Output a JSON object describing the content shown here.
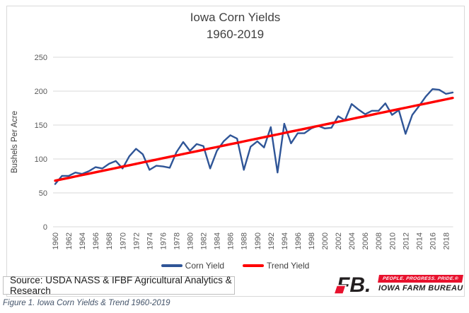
{
  "colors": {
    "accent_blue": "#2F5597",
    "accent_red": "#FF0000",
    "grid": "#D9D9D9",
    "axis_text": "#595959",
    "title_text": "#404040",
    "caption_text": "#44546A",
    "logo_red": "#E8112D",
    "logo_black": "#231F20"
  },
  "chart_data": {
    "type": "line",
    "title": "Iowa Corn Yields 1960-2019",
    "title_lines": [
      "Iowa Corn Yields",
      "1960-2019"
    ],
    "xlabel": "",
    "ylabel": "Bushels Per Acre",
    "ylim": [
      0,
      250
    ],
    "y_ticks": [
      0,
      50,
      100,
      150,
      200,
      250
    ],
    "x_tick_step": 2,
    "grid": "horizontal",
    "legend_position": "bottom",
    "x": [
      1960,
      1961,
      1962,
      1963,
      1964,
      1965,
      1966,
      1967,
      1968,
      1969,
      1970,
      1971,
      1972,
      1973,
      1974,
      1975,
      1976,
      1977,
      1978,
      1979,
      1980,
      1981,
      1982,
      1983,
      1984,
      1985,
      1986,
      1987,
      1988,
      1989,
      1990,
      1991,
      1992,
      1993,
      1994,
      1995,
      1996,
      1997,
      1998,
      1999,
      2000,
      2001,
      2002,
      2003,
      2004,
      2005,
      2006,
      2007,
      2008,
      2009,
      2010,
      2011,
      2012,
      2013,
      2014,
      2015,
      2016,
      2017,
      2018,
      2019
    ],
    "series": [
      {
        "name": "Corn Yield",
        "color": "#2F5597",
        "values": [
          63,
          75,
          75,
          80,
          78,
          82,
          88,
          86,
          93,
          97,
          86,
          104,
          115,
          107,
          84,
          90,
          89,
          87,
          110,
          125,
          112,
          122,
          119,
          86,
          112,
          126,
          135,
          130,
          84,
          118,
          126,
          117,
          147,
          80,
          152,
          123,
          138,
          138,
          145,
          149,
          145,
          146,
          163,
          157,
          181,
          173,
          166,
          171,
          171,
          182,
          165,
          172,
          137,
          165,
          178,
          192,
          203,
          202,
          196,
          198
        ]
      },
      {
        "name": "Trend Yield",
        "color": "#FF0000",
        "values": [
          68.0,
          70.1,
          72.1,
          74.2,
          76.3,
          78.3,
          80.4,
          82.5,
          84.5,
          86.6,
          88.7,
          90.7,
          92.8,
          94.9,
          96.9,
          99.0,
          101.1,
          103.2,
          105.2,
          107.3,
          109.4,
          111.4,
          113.5,
          115.6,
          117.6,
          119.7,
          121.8,
          123.8,
          125.9,
          128.0,
          130.0,
          132.1,
          134.2,
          136.2,
          138.3,
          140.4,
          142.4,
          144.5,
          146.6,
          148.6,
          150.7,
          152.8,
          154.8,
          156.9,
          159.0,
          161.1,
          163.1,
          165.2,
          167.3,
          169.3,
          171.4,
          173.5,
          175.5,
          177.6,
          179.7,
          181.7,
          183.8,
          185.9,
          187.9,
          190.0
        ]
      }
    ]
  },
  "source_box": {
    "text": "Source: USDA NASS & IFBF Agricultural Analytics & Research"
  },
  "logo": {
    "mark": "FB.",
    "tagline": "PEOPLE. PROGRESS. PRIDE.®",
    "org": "IOWA FARM BUREAU"
  },
  "caption": "Figure 1. Iowa Corn Yields & Trend 1960-2019"
}
